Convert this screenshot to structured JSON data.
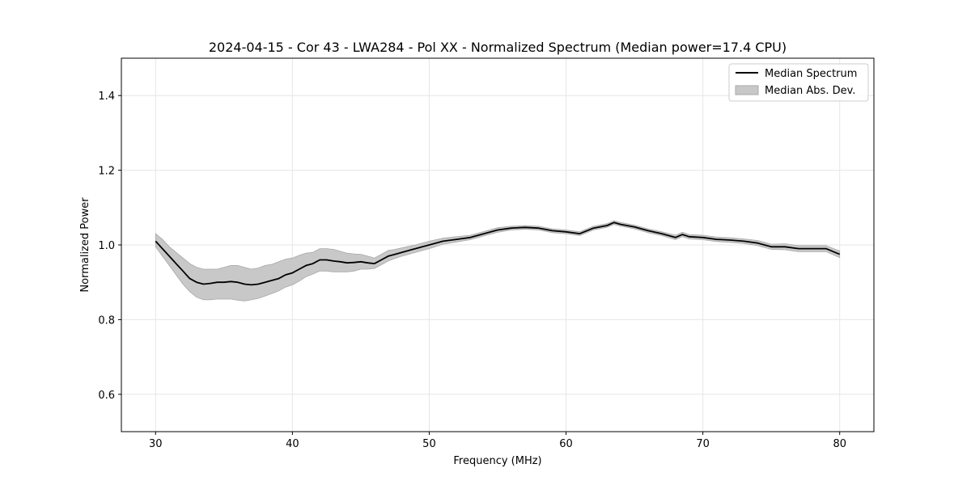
{
  "chart_data": {
    "type": "line",
    "title": "2024-04-15 - Cor 43 - LWA284 - Pol XX - Normalized Spectrum (Median power=17.4 CPU)",
    "xlabel": "Frequency (MHz)",
    "ylabel": "Normalized Power",
    "xlim": [
      27.5,
      82.5
    ],
    "ylim": [
      0.5,
      1.5
    ],
    "xticks": [
      30,
      40,
      50,
      60,
      70,
      80
    ],
    "yticks": [
      0.6,
      0.8,
      1.0,
      1.2,
      1.4
    ],
    "xtick_labels": [
      "30",
      "40",
      "50",
      "60",
      "70",
      "80"
    ],
    "ytick_labels": [
      "0.6",
      "0.8",
      "1.0",
      "1.2",
      "1.4"
    ],
    "grid": true,
    "legend": {
      "location": "top-right",
      "entries": [
        "Median Spectrum",
        "Median Abs. Dev."
      ]
    },
    "series": [
      {
        "name": "Median Spectrum",
        "color": "#000000",
        "x": [
          30,
          30.5,
          31,
          31.5,
          32,
          32.5,
          33,
          33.5,
          34,
          34.5,
          35,
          35.5,
          36,
          36.5,
          37,
          37.5,
          38,
          38.5,
          39,
          39.5,
          40,
          40.5,
          41,
          41.5,
          42,
          42.5,
          43,
          43.5,
          44,
          44.5,
          45,
          45.5,
          46,
          46.5,
          47,
          47.5,
          48,
          48.5,
          49,
          49.5,
          50,
          51,
          52,
          53,
          54,
          55,
          56,
          57,
          58,
          59,
          60,
          61,
          62,
          63,
          63.5,
          64,
          65,
          66,
          67,
          68,
          68.5,
          69,
          70,
          71,
          72,
          73,
          74,
          75,
          76,
          77,
          78,
          79,
          80
        ],
        "values": [
          1.01,
          0.99,
          0.97,
          0.95,
          0.93,
          0.91,
          0.9,
          0.895,
          0.897,
          0.9,
          0.9,
          0.902,
          0.9,
          0.895,
          0.893,
          0.895,
          0.9,
          0.905,
          0.91,
          0.92,
          0.925,
          0.935,
          0.945,
          0.95,
          0.96,
          0.96,
          0.957,
          0.955,
          0.952,
          0.953,
          0.955,
          0.952,
          0.95,
          0.96,
          0.97,
          0.975,
          0.98,
          0.985,
          0.99,
          0.995,
          1.0,
          1.01,
          1.015,
          1.02,
          1.03,
          1.04,
          1.045,
          1.047,
          1.045,
          1.038,
          1.035,
          1.03,
          1.045,
          1.052,
          1.06,
          1.055,
          1.048,
          1.038,
          1.03,
          1.02,
          1.028,
          1.022,
          1.02,
          1.015,
          1.013,
          1.01,
          1.005,
          0.995,
          0.995,
          0.99,
          0.99,
          0.99,
          0.975
        ]
      },
      {
        "name": "Median Abs. Dev.",
        "color": "#c8c8c8",
        "x": [
          30,
          30.5,
          31,
          31.5,
          32,
          32.5,
          33,
          33.5,
          34,
          34.5,
          35,
          35.5,
          36,
          36.5,
          37,
          37.5,
          38,
          38.5,
          39,
          39.5,
          40,
          40.5,
          41,
          41.5,
          42,
          42.5,
          43,
          43.5,
          44,
          44.5,
          45,
          45.5,
          46,
          46.5,
          47,
          47.5,
          48,
          48.5,
          49,
          49.5,
          50,
          51,
          52,
          53,
          54,
          55,
          56,
          57,
          58,
          59,
          60,
          61,
          62,
          63,
          63.5,
          64,
          65,
          66,
          67,
          68,
          68.5,
          69,
          70,
          71,
          72,
          73,
          74,
          75,
          76,
          77,
          78,
          79,
          80
        ],
        "lower": [
          0.995,
          0.97,
          0.945,
          0.92,
          0.895,
          0.875,
          0.86,
          0.853,
          0.853,
          0.855,
          0.855,
          0.855,
          0.852,
          0.85,
          0.853,
          0.857,
          0.863,
          0.87,
          0.877,
          0.887,
          0.893,
          0.903,
          0.915,
          0.922,
          0.93,
          0.93,
          0.928,
          0.928,
          0.928,
          0.93,
          0.935,
          0.935,
          0.937,
          0.947,
          0.957,
          0.964,
          0.97,
          0.975,
          0.98,
          0.985,
          0.99,
          1.002,
          1.008,
          1.014,
          1.024,
          1.034,
          1.04,
          1.042,
          1.04,
          1.033,
          1.03,
          1.025,
          1.04,
          1.047,
          1.055,
          1.05,
          1.043,
          1.033,
          1.025,
          1.014,
          1.022,
          1.016,
          1.014,
          1.009,
          1.007,
          1.004,
          0.998,
          0.988,
          0.987,
          0.982,
          0.982,
          0.982,
          0.966
        ],
        "upper": [
          1.03,
          1.015,
          0.995,
          0.98,
          0.965,
          0.95,
          0.94,
          0.935,
          0.935,
          0.935,
          0.94,
          0.945,
          0.945,
          0.94,
          0.935,
          0.938,
          0.945,
          0.948,
          0.955,
          0.962,
          0.965,
          0.972,
          0.978,
          0.98,
          0.99,
          0.99,
          0.988,
          0.983,
          0.978,
          0.976,
          0.975,
          0.97,
          0.965,
          0.975,
          0.985,
          0.988,
          0.992,
          0.996,
          1.0,
          1.005,
          1.01,
          1.018,
          1.022,
          1.026,
          1.036,
          1.046,
          1.05,
          1.052,
          1.05,
          1.043,
          1.04,
          1.035,
          1.05,
          1.057,
          1.065,
          1.06,
          1.053,
          1.043,
          1.035,
          1.026,
          1.034,
          1.028,
          1.026,
          1.021,
          1.019,
          1.016,
          1.012,
          1.002,
          1.003,
          0.998,
          0.998,
          0.998,
          0.984
        ]
      }
    ]
  },
  "colors": {
    "line": "#000000",
    "band_fill": "#c8c8c8",
    "band_edge": "#a8a8a8",
    "grid": "#e6e6e6",
    "axes": "#000000"
  }
}
